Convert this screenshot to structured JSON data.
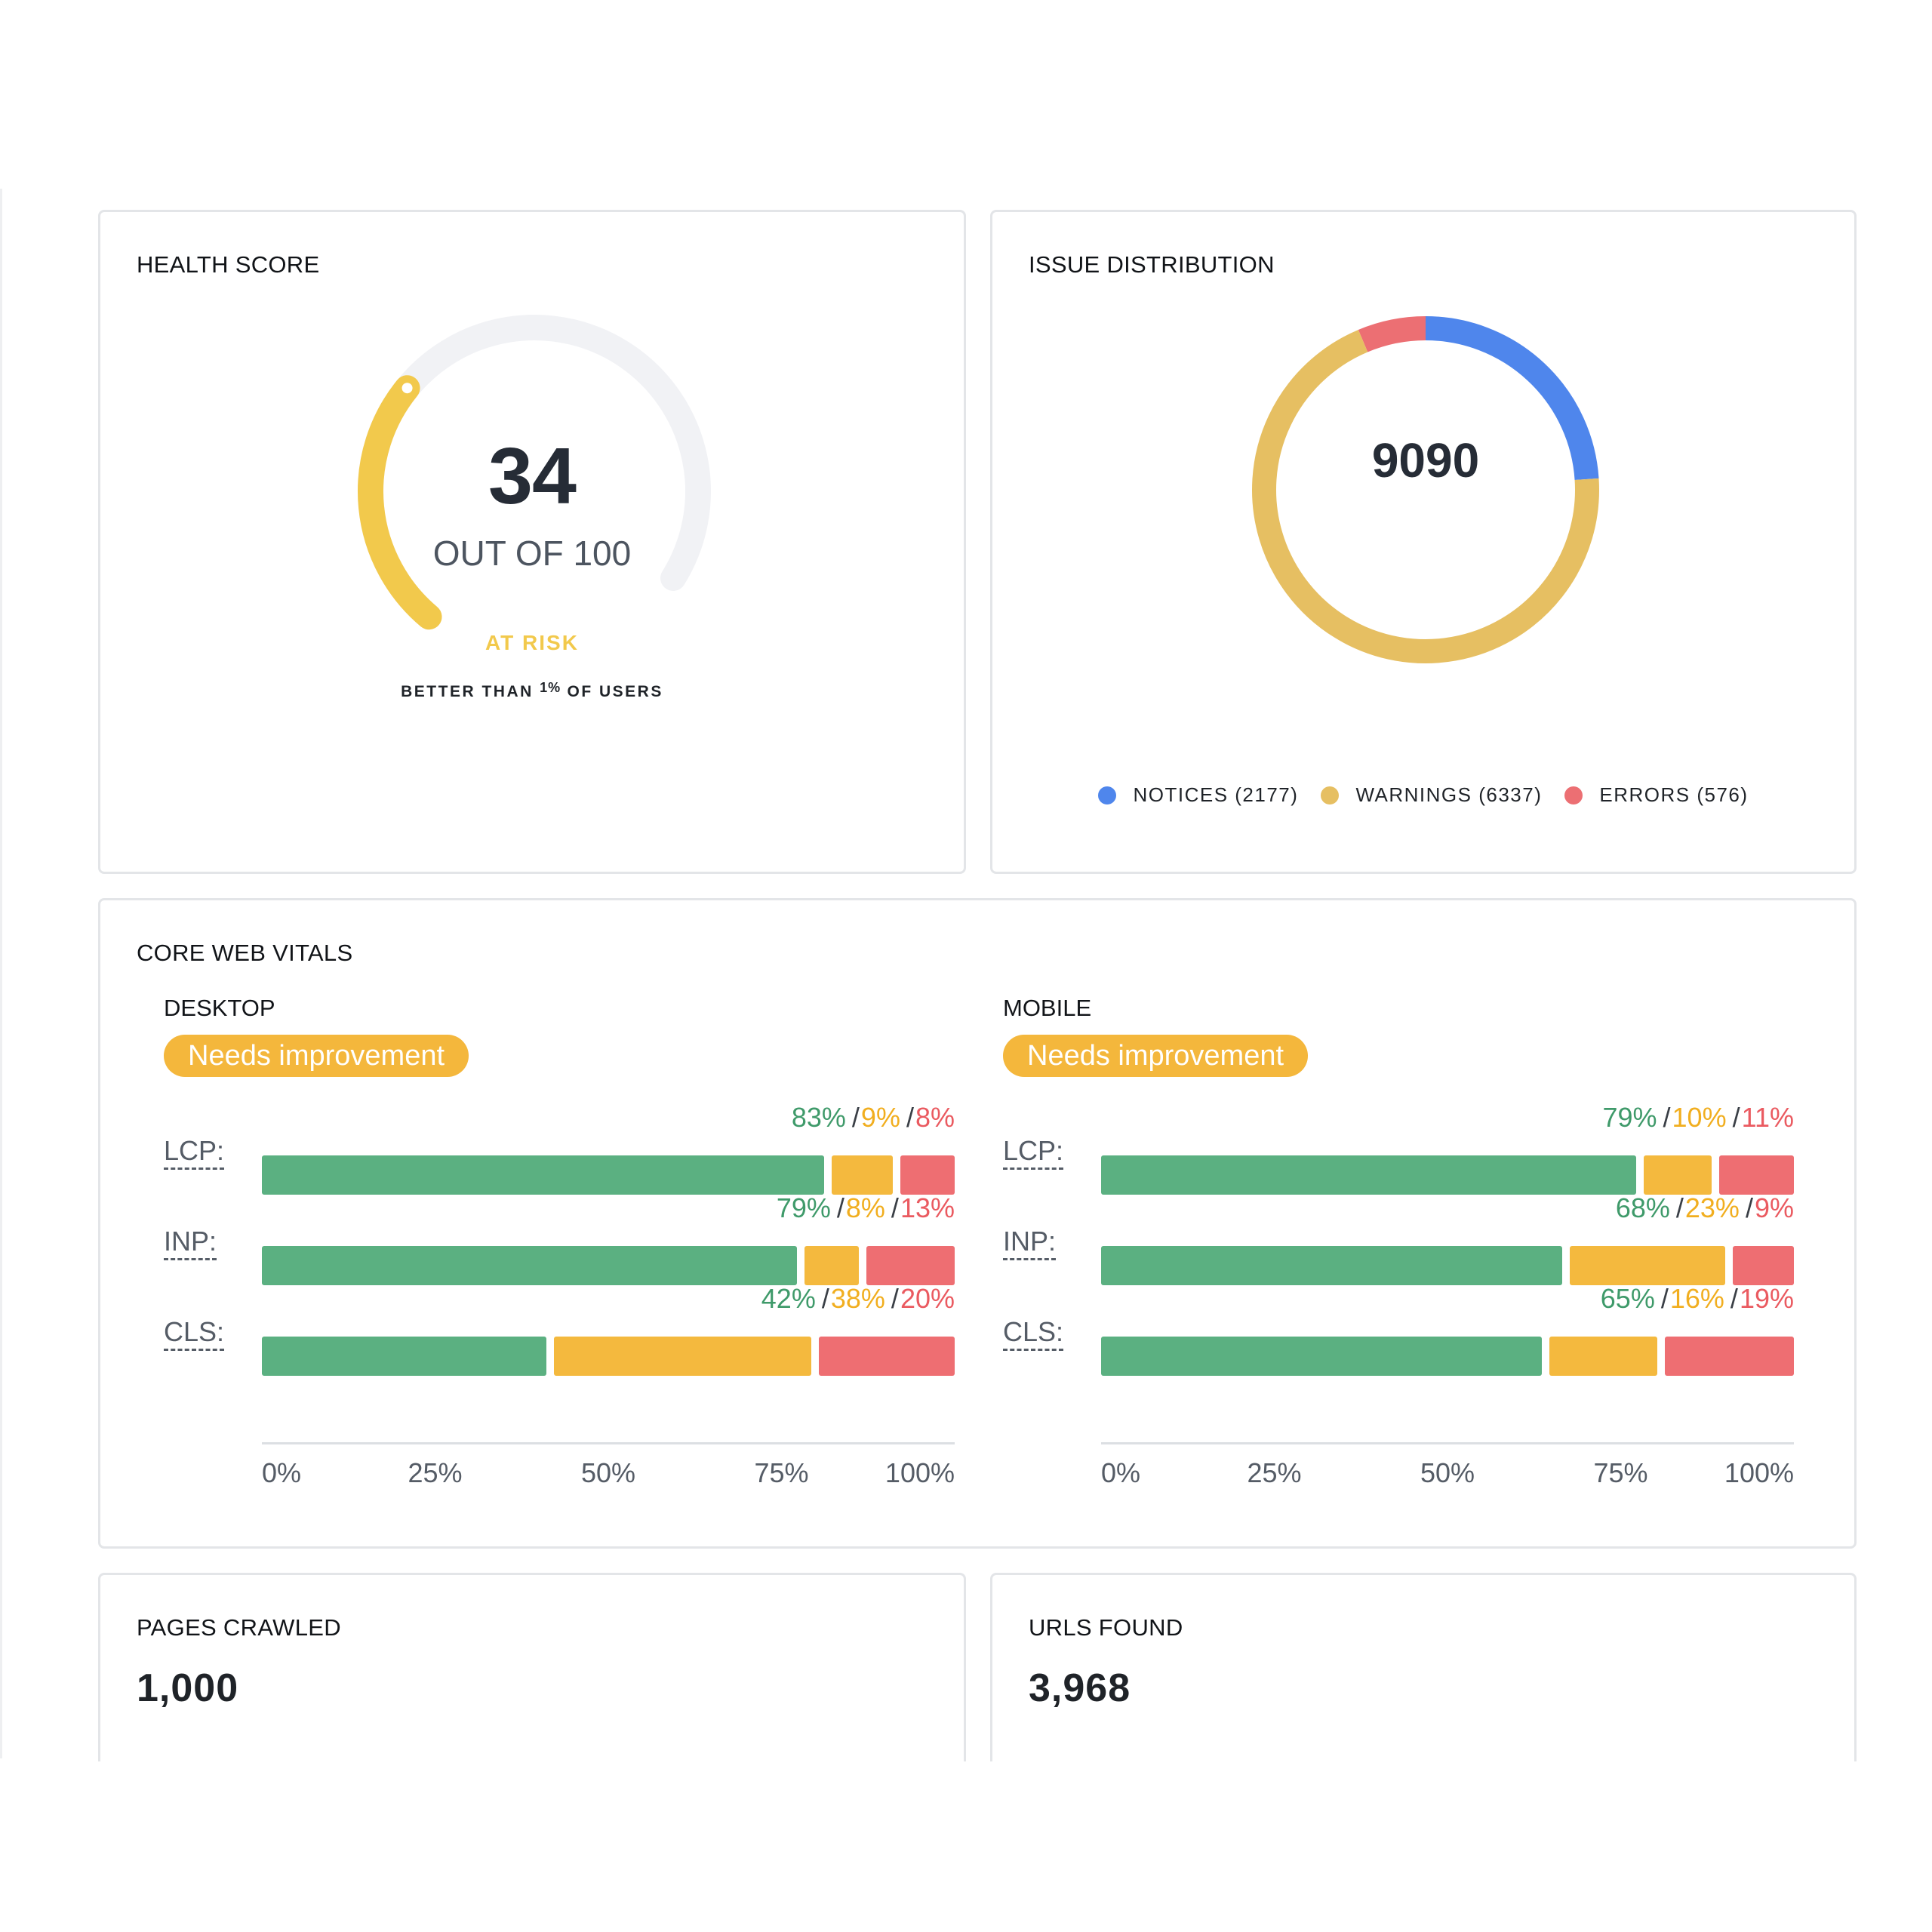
{
  "health_score": {
    "title": "HEALTH SCORE",
    "score": "34",
    "score_value": 34,
    "out_of_label": "OUT OF 100",
    "status": "AT RISK",
    "compare_prefix": "BETTER THAN",
    "compare_value": "1%",
    "compare_suffix": "OF USERS",
    "gauge_color": "#f2c94c",
    "track_color": "#f1f2f5"
  },
  "issue_distribution": {
    "title": "ISSUE DISTRIBUTION",
    "total": "9090",
    "legend": [
      {
        "label": "NOTICES (2177)",
        "color": "#4f86ec"
      },
      {
        "label": "WARNINGS (6337)",
        "color": "#e6bf62"
      },
      {
        "label": "ERRORS (576)",
        "color": "#ec6f73"
      }
    ],
    "chart_data": {
      "type": "pie",
      "categories": [
        "NOTICES",
        "WARNINGS",
        "ERRORS"
      ],
      "values": [
        2177,
        6337,
        576
      ]
    }
  },
  "core_web_vitals": {
    "title": "CORE WEB VITALS",
    "colors": {
      "good": "#5bb081",
      "mid": "#f4b93e",
      "bad": "#ee6e72"
    },
    "axis_ticks": [
      "0%",
      "25%",
      "50%",
      "75%",
      "100%"
    ],
    "desktop": {
      "label": "DESKTOP",
      "status": "Needs improvement",
      "metrics": [
        {
          "name": "LCP:",
          "good": 83,
          "mid": 9,
          "bad": 8,
          "good_label": "83%",
          "mid_label": "9%",
          "bad_label": "8%"
        },
        {
          "name": "INP:",
          "good": 79,
          "mid": 8,
          "bad": 13,
          "good_label": "79%",
          "mid_label": "8%",
          "bad_label": "13%"
        },
        {
          "name": "CLS:",
          "good": 42,
          "mid": 38,
          "bad": 20,
          "good_label": "42%",
          "mid_label": "38%",
          "bad_label": "20%"
        }
      ]
    },
    "mobile": {
      "label": "MOBILE",
      "status": "Needs improvement",
      "metrics": [
        {
          "name": "LCP:",
          "good": 79,
          "mid": 10,
          "bad": 11,
          "good_label": "79%",
          "mid_label": "10%",
          "bad_label": "11%"
        },
        {
          "name": "INP:",
          "good": 68,
          "mid": 23,
          "bad": 9,
          "good_label": "68%",
          "mid_label": "23%",
          "bad_label": "9%"
        },
        {
          "name": "CLS:",
          "good": 65,
          "mid": 16,
          "bad": 19,
          "good_label": "65%",
          "mid_label": "16%",
          "bad_label": "19%"
        }
      ]
    },
    "chart_data": [
      {
        "type": "bar",
        "title": "DESKTOP",
        "categories": [
          "LCP",
          "INP",
          "CLS"
        ],
        "series": [
          {
            "values": [
              83,
              79,
              42
            ]
          },
          {
            "values": [
              9,
              8,
              38
            ]
          },
          {
            "values": [
              8,
              13,
              20
            ]
          }
        ],
        "xlim": [
          0,
          100
        ],
        "stacked": true
      },
      {
        "type": "bar",
        "title": "MOBILE",
        "categories": [
          "LCP",
          "INP",
          "CLS"
        ],
        "series": [
          {
            "values": [
              79,
              68,
              65
            ]
          },
          {
            "values": [
              10,
              23,
              16
            ]
          },
          {
            "values": [
              11,
              9,
              19
            ]
          }
        ],
        "xlim": [
          0,
          100
        ],
        "stacked": true
      }
    ]
  },
  "pages_crawled": {
    "title": "PAGES CRAWLED",
    "value": "1,000"
  },
  "urls_found": {
    "title": "URLS FOUND",
    "value": "3,968"
  }
}
